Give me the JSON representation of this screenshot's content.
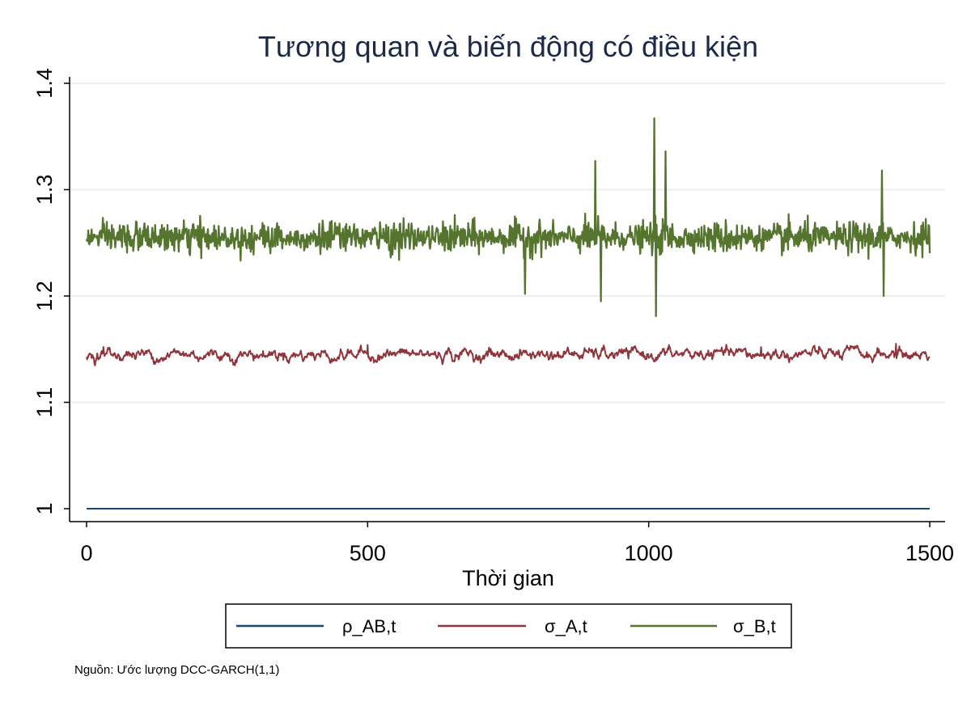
{
  "chart_data": {
    "type": "line",
    "title": "Tương quan và biến động có điều kiện",
    "xlabel": "Thời gian",
    "ylabel": "",
    "xlim": [
      0,
      1500
    ],
    "ylim": [
      1.0,
      1.4
    ],
    "x_ticks": [
      0,
      500,
      1000,
      1500
    ],
    "x_tick_labels": [
      "0",
      "500",
      "1000",
      "1500"
    ],
    "y_ticks": [
      1.0,
      1.1,
      1.2,
      1.3,
      1.4
    ],
    "y_tick_labels": [
      "1",
      "1.1",
      "1.2",
      "1.3",
      "1.4"
    ],
    "grid": "horizontal",
    "legend_position": "bottom",
    "series": [
      {
        "name": "ρ_AB,t",
        "color": "#1a476f",
        "kind": "constant",
        "level": 1.0
      },
      {
        "name": "σ_A,t",
        "color": "#90353b",
        "kind": "smooth-noise",
        "level": 1.145,
        "amplitude": 0.004,
        "highlights": [
          [
            30,
            1.152
          ],
          [
            500,
            1.154
          ],
          [
            1200,
            1.152
          ],
          [
            1440,
            1.155
          ]
        ]
      },
      {
        "name": "σ_B,t",
        "color": "#55752f",
        "kind": "volatile-noise",
        "level": 1.255,
        "amplitude": 0.02,
        "peaks": [
          [
            780,
            1.202
          ],
          [
            905,
            1.327
          ],
          [
            915,
            1.195
          ],
          [
            1010,
            1.367
          ],
          [
            1013,
            1.181
          ],
          [
            1030,
            1.336
          ],
          [
            1415,
            1.318
          ],
          [
            1418,
            1.2
          ]
        ]
      }
    ],
    "note": "Nguồn: Ước lượng DCC-GARCH(1,1)"
  }
}
